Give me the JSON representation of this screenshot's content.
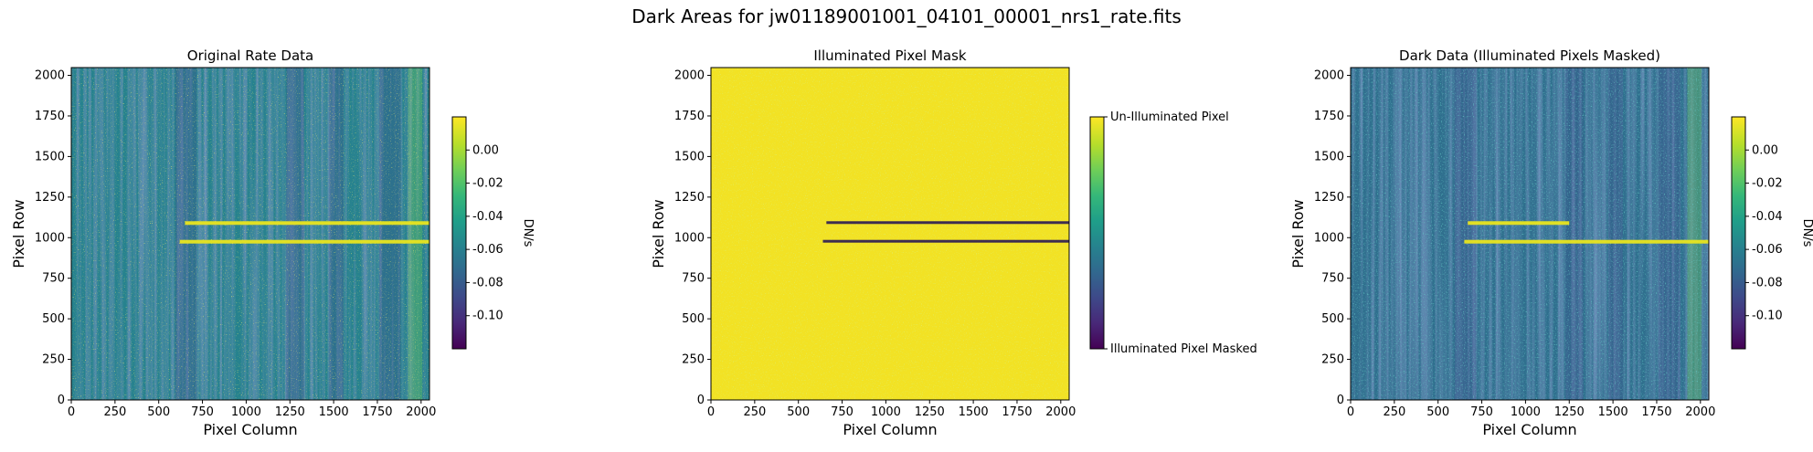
{
  "figure": {
    "title": "Dark Areas for jw01189001001_04101_00001_nrs1_rate.fits"
  },
  "colors": {
    "viridis": [
      "#440154",
      "#482878",
      "#3e4989",
      "#31688e",
      "#26828e",
      "#1f9e89",
      "#35b779",
      "#6ece58",
      "#b5de2b",
      "#fde725"
    ]
  },
  "chart_data": [
    {
      "type": "heatmap",
      "title": "Original Rate Data",
      "xlabel": "Pixel Column",
      "ylabel": "Pixel Row",
      "xlim": [
        0,
        2048
      ],
      "ylim": [
        0,
        2048
      ],
      "xticks": [
        0,
        250,
        500,
        750,
        1000,
        1250,
        1500,
        1750,
        2000
      ],
      "yticks": [
        0,
        250,
        500,
        750,
        1000,
        1250,
        1500,
        1750,
        2000
      ],
      "colorbar": {
        "label": "DN/s",
        "range": [
          -0.12,
          0.02
        ],
        "ticks": [
          0.0,
          -0.02,
          -0.04,
          -0.06,
          -0.08,
          -0.1
        ]
      },
      "features": [
        {
          "kind": "horizontal-streak",
          "row": 1090,
          "col_range": [
            650,
            2048
          ]
        },
        {
          "kind": "horizontal-streak",
          "row": 975,
          "col_range": [
            620,
            2048
          ]
        }
      ]
    },
    {
      "type": "heatmap",
      "title": "Illuminated Pixel Mask",
      "xlabel": "Pixel Column",
      "ylabel": "Pixel Row",
      "xlim": [
        0,
        2048
      ],
      "ylim": [
        0,
        2048
      ],
      "xticks": [
        0,
        250,
        500,
        750,
        1000,
        1250,
        1500,
        1750,
        2000
      ],
      "yticks": [
        0,
        250,
        500,
        750,
        1000,
        1250,
        1500,
        1750,
        2000
      ],
      "colorbar": {
        "ticklabels": [
          "Un-Illuminated Pixel",
          "Illuminated Pixel Masked"
        ],
        "values": [
          1,
          0
        ]
      },
      "features": [
        {
          "kind": "masked-streak",
          "row": 1090,
          "col_range": [
            660,
            2048
          ]
        },
        {
          "kind": "masked-streak",
          "row": 975,
          "col_range": [
            640,
            2048
          ]
        }
      ]
    },
    {
      "type": "heatmap",
      "title": "Dark Data (Illuminated Pixels Masked)",
      "xlabel": "Pixel Column",
      "ylabel": "Pixel Row",
      "xlim": [
        0,
        2048
      ],
      "ylim": [
        0,
        2048
      ],
      "xticks": [
        0,
        250,
        500,
        750,
        1000,
        1250,
        1500,
        1750,
        2000
      ],
      "yticks": [
        0,
        250,
        500,
        750,
        1000,
        1250,
        1500,
        1750,
        2000
      ],
      "colorbar": {
        "label": "DN/s",
        "range": [
          -0.12,
          0.02
        ],
        "ticks": [
          0.0,
          -0.02,
          -0.04,
          -0.06,
          -0.08,
          -0.1
        ]
      },
      "features": [
        {
          "kind": "horizontal-streak",
          "row": 1090,
          "col_range": [
            670,
            1250
          ]
        },
        {
          "kind": "horizontal-streak",
          "row": 975,
          "col_range": [
            650,
            2048
          ]
        }
      ]
    }
  ]
}
